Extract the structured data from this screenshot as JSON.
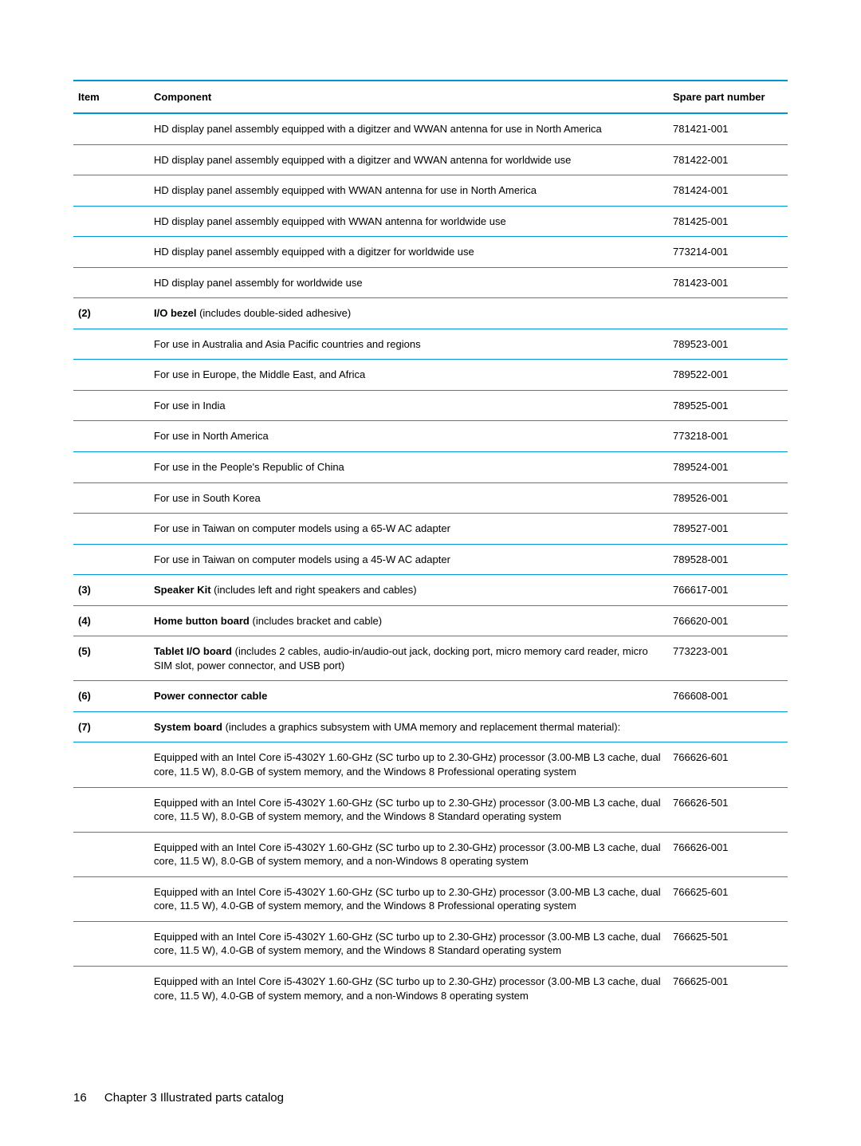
{
  "colors": {
    "rule": "#0096d6",
    "text": "#000000",
    "background": "#ffffff"
  },
  "table": {
    "headers": {
      "item": "Item",
      "component": "Component",
      "spare": "Spare part number"
    },
    "rows": [
      {
        "item": "",
        "component_bold": "",
        "component_plain": "HD display panel assembly equipped with a digitzer and WWAN antenna for use in North America",
        "spare": "781421-001"
      },
      {
        "item": "",
        "component_bold": "",
        "component_plain": "HD display panel assembly equipped with a digitzer and WWAN antenna for worldwide use",
        "spare": "781422-001"
      },
      {
        "item": "",
        "component_bold": "",
        "component_plain": "HD display panel assembly equipped with WWAN antenna for use in North America",
        "spare": "781424-001"
      },
      {
        "item": "",
        "component_bold": "",
        "component_plain": "HD display panel assembly equipped with WWAN antenna for worldwide use",
        "spare": "781425-001"
      },
      {
        "item": "",
        "component_bold": "",
        "component_plain": "HD display panel assembly equipped with a digitzer for worldwide use",
        "spare": "773214-001"
      },
      {
        "item": "",
        "component_bold": "",
        "component_plain": "HD display panel assembly for worldwide use",
        "spare": "781423-001"
      },
      {
        "item": "(2)",
        "component_bold": "I/O bezel",
        "component_plain": " (includes double-sided adhesive)",
        "spare": ""
      },
      {
        "item": "",
        "component_bold": "",
        "component_plain": "For use in Australia and Asia Pacific countries and regions",
        "spare": "789523-001"
      },
      {
        "item": "",
        "component_bold": "",
        "component_plain": "For use in Europe, the Middle East, and Africa",
        "spare": "789522-001"
      },
      {
        "item": "",
        "component_bold": "",
        "component_plain": "For use in India",
        "spare": "789525-001"
      },
      {
        "item": "",
        "component_bold": "",
        "component_plain": "For use in North America",
        "spare": "773218-001"
      },
      {
        "item": "",
        "component_bold": "",
        "component_plain": "For use in the People's Republic of China",
        "spare": "789524-001"
      },
      {
        "item": "",
        "component_bold": "",
        "component_plain": "For use in South Korea",
        "spare": "789526-001"
      },
      {
        "item": "",
        "component_bold": "",
        "component_plain": "For use in Taiwan on computer models using a 65-W AC adapter",
        "spare": "789527-001"
      },
      {
        "item": "",
        "component_bold": "",
        "component_plain": "For use in Taiwan on computer models using a 45-W AC adapter",
        "spare": "789528-001"
      },
      {
        "item": "(3)",
        "component_bold": "Speaker Kit",
        "component_plain": " (includes left and right speakers and cables)",
        "spare": "766617-001"
      },
      {
        "item": "(4)",
        "component_bold": "Home button board",
        "component_plain": " (includes bracket and cable)",
        "spare": "766620-001"
      },
      {
        "item": "(5)",
        "component_bold": "Tablet I/O board",
        "component_plain": " (includes 2 cables, audio-in/audio-out jack, docking port, micro memory card reader, micro SIM slot, power connector, and USB port)",
        "spare": "773223-001"
      },
      {
        "item": "(6)",
        "component_bold": "Power connector cable",
        "component_plain": "",
        "spare": "766608-001"
      },
      {
        "item": "(7)",
        "component_bold": "System board",
        "component_plain": " (includes a graphics subsystem with UMA memory and replacement thermal material):",
        "spare": "",
        "span_component": true
      },
      {
        "item": "",
        "component_bold": "",
        "component_plain": "Equipped with an Intel Core i5-4302Y 1.60-GHz (SC turbo up to 2.30-GHz) processor (3.00-MB L3 cache, dual core, 11.5 W), 8.0-GB of system memory, and the Windows 8 Professional operating system",
        "spare": "766626-601"
      },
      {
        "item": "",
        "component_bold": "",
        "component_plain": "Equipped with an Intel Core i5-4302Y 1.60-GHz (SC turbo up to 2.30-GHz) processor (3.00-MB L3 cache, dual core, 11.5 W), 8.0-GB of system memory, and the Windows 8 Standard operating system",
        "spare": "766626-501"
      },
      {
        "item": "",
        "component_bold": "",
        "component_plain": "Equipped with an Intel Core i5-4302Y 1.60-GHz (SC turbo up to 2.30-GHz) processor (3.00-MB L3 cache, dual core, 11.5 W), 8.0-GB of system memory, and a non-Windows 8 operating system",
        "spare": "766626-001"
      },
      {
        "item": "",
        "component_bold": "",
        "component_plain": "Equipped with an Intel Core i5-4302Y 1.60-GHz (SC turbo up to 2.30-GHz) processor (3.00-MB L3 cache, dual core, 11.5 W), 4.0-GB of system memory, and the Windows 8 Professional operating system",
        "spare": "766625-601"
      },
      {
        "item": "",
        "component_bold": "",
        "component_plain": "Equipped with an Intel Core i5-4302Y 1.60-GHz (SC turbo up to 2.30-GHz) processor (3.00-MB L3 cache, dual core, 11.5 W), 4.0-GB of system memory, and the Windows 8 Standard operating system",
        "spare": "766625-501"
      },
      {
        "item": "",
        "component_bold": "",
        "component_plain": "Equipped with an Intel Core i5-4302Y 1.60-GHz (SC turbo up to 2.30-GHz) processor (3.00-MB L3 cache, dual core, 11.5 W), 4.0-GB of system memory, and a non-Windows 8 operating system",
        "spare": "766625-001",
        "last": true
      }
    ]
  },
  "footer": {
    "page": "16",
    "chapter": "Chapter 3   Illustrated parts catalog"
  }
}
